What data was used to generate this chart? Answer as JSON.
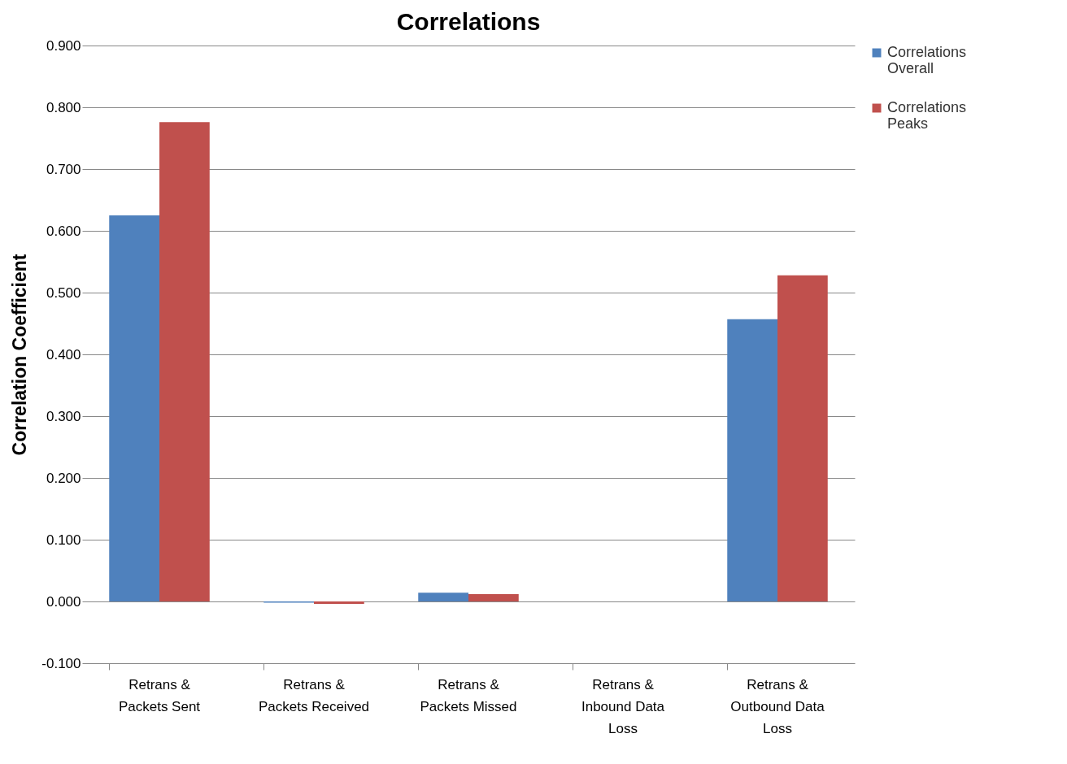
{
  "chart_data": {
    "type": "bar",
    "title": "Correlations",
    "ylabel": "Correlation Coefficient",
    "categories": [
      "Retrans & Packets Sent",
      "Retrans & Packets Received",
      "Retrans & Packets Missed",
      "Retrans & Inbound Data Loss",
      "Retrans & Outbound Data Loss"
    ],
    "series": [
      {
        "name": "Correlations Overall",
        "color": "#4f81bd",
        "values": [
          0.625,
          -0.002,
          0.014,
          0,
          0.457
        ]
      },
      {
        "name": "Correlations Peaks",
        "color": "#c0504d",
        "values": [
          0.776,
          -0.004,
          0.012,
          0,
          0.528
        ]
      }
    ],
    "ylim": [
      -0.1,
      0.9
    ],
    "yticks": [
      {
        "value": -0.1,
        "label": "-0.100"
      },
      {
        "value": 0,
        "label": "0.000"
      },
      {
        "value": 0.1,
        "label": "0.100"
      },
      {
        "value": 0.2,
        "label": "0.200"
      },
      {
        "value": 0.3,
        "label": "0.300"
      },
      {
        "value": 0.4,
        "label": "0.400"
      },
      {
        "value": 0.5,
        "label": "0.500"
      },
      {
        "value": 0.6,
        "label": "0.600"
      },
      {
        "value": 0.7,
        "label": "0.700"
      },
      {
        "value": 0.8,
        "label": "0.800"
      },
      {
        "value": 0.9,
        "label": "0.900"
      }
    ],
    "grid": "y",
    "legend": "right"
  }
}
